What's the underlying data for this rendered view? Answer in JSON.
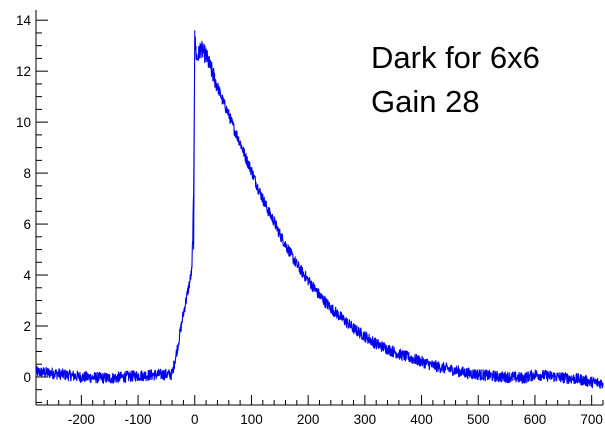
{
  "chart_data": {
    "type": "line",
    "title": "",
    "xlabel": "",
    "ylabel": "",
    "xlim": [
      -280,
      720
    ],
    "ylim": [
      -1.1,
      14.4
    ],
    "x_ticks": [
      -200,
      -100,
      0,
      100,
      200,
      300,
      400,
      500,
      600,
      700
    ],
    "y_ticks": [
      0,
      2,
      4,
      6,
      8,
      10,
      12,
      14
    ],
    "x_tick_labels": [
      "-200",
      "-100",
      "0",
      "100",
      "200",
      "300",
      "400",
      "500",
      "600",
      "700"
    ],
    "y_tick_labels": [
      "0",
      "2",
      "4",
      "6",
      "8",
      "10",
      "12",
      "14"
    ],
    "grid": false,
    "legend": "none",
    "annotation": {
      "lines": [
        "Dark for 6x6",
        "Gain 28"
      ],
      "position": "top-right"
    },
    "series": [
      {
        "color": "#0000ee",
        "x": [
          -280,
          -250,
          -200,
          -150,
          -100,
          -60,
          -40,
          -30,
          -20,
          -10,
          -5,
          -2,
          0,
          3,
          5,
          10,
          20,
          30,
          40,
          50,
          60,
          70,
          80,
          90,
          100,
          110,
          120,
          130,
          140,
          150,
          160,
          170,
          180,
          190,
          200,
          220,
          240,
          260,
          280,
          300,
          320,
          340,
          360,
          380,
          400,
          420,
          440,
          460,
          480,
          500,
          520,
          540,
          560,
          580,
          600,
          620,
          640,
          660,
          680,
          700,
          720
        ],
        "y": [
          0.2,
          0.15,
          0.0,
          -0.05,
          0.05,
          0.1,
          0.1,
          1.2,
          2.5,
          3.6,
          4.2,
          7.0,
          13.3,
          12.6,
          12.5,
          12.9,
          12.6,
          12.0,
          11.4,
          10.8,
          10.3,
          9.7,
          9.2,
          8.6,
          8.1,
          7.5,
          7.0,
          6.5,
          6.1,
          5.6,
          5.2,
          4.8,
          4.4,
          4.1,
          3.8,
          3.2,
          2.7,
          2.3,
          1.9,
          1.6,
          1.3,
          1.1,
          0.9,
          0.75,
          0.6,
          0.45,
          0.35,
          0.25,
          0.15,
          0.1,
          0.05,
          0.0,
          0.0,
          -0.05,
          0.1,
          0.05,
          0.0,
          -0.05,
          -0.1,
          -0.2,
          -0.25
        ]
      }
    ]
  }
}
